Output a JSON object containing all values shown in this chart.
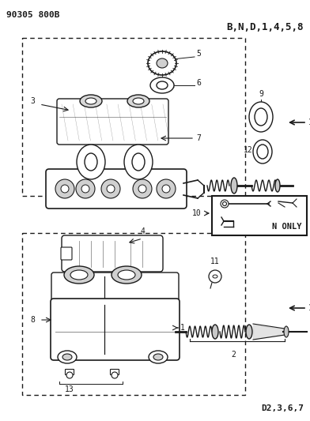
{
  "title_left": "90305 800B",
  "title_right": "B,N,D,1,4,5,8",
  "bottom_right": "D2,3,6,7",
  "n_only_label": "N ONLY",
  "background_color": "#ffffff",
  "line_color": "#1a1a1a",
  "gray_fill": "#e8e8e8",
  "dark_gray": "#b0b0b0",
  "fig_width": 3.92,
  "fig_height": 5.33,
  "dpi": 100
}
